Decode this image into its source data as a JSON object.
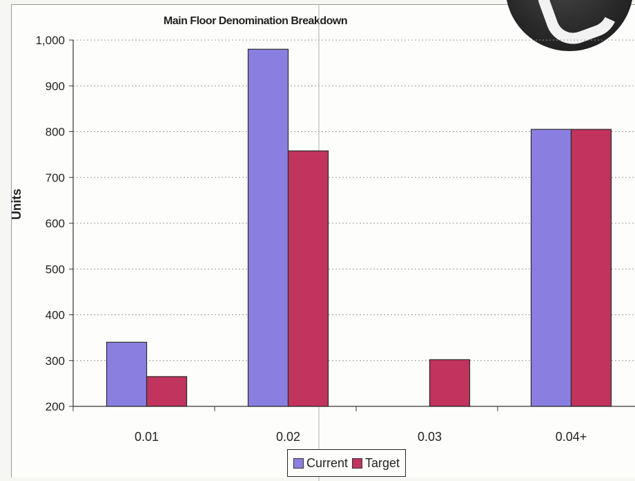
{
  "chart_data": {
    "type": "bar",
    "title": "Main Floor Denomination Breakdown",
    "xlabel": "",
    "ylabel": "Units",
    "categories": [
      "0.01",
      "0.02",
      "0.03",
      "0.04+"
    ],
    "series": [
      {
        "name": "Current",
        "color": "#8a7fe0",
        "values": [
          340,
          980,
          200,
          805
        ]
      },
      {
        "name": "Target",
        "color": "#c0345e",
        "values": [
          265,
          758,
          302,
          805
        ]
      }
    ],
    "ylim": [
      200,
      1000
    ],
    "yticks": [
      "200",
      "300",
      "400",
      "500",
      "600",
      "700",
      "800",
      "900",
      "1,000"
    ],
    "ytick_values": [
      200,
      300,
      400,
      500,
      600,
      700,
      800,
      900,
      1000
    ],
    "grid": true,
    "legend": "bottom"
  },
  "badge_icon": "dark-circle-badge-icon"
}
